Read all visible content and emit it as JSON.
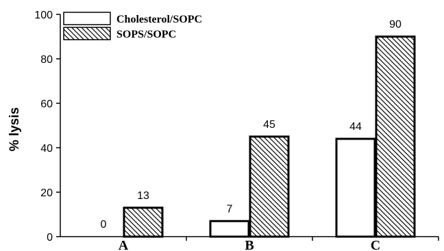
{
  "chart_data": {
    "type": "bar",
    "ylabel": "% lysis",
    "xlabel": "",
    "categories": [
      "A",
      "B",
      "C"
    ],
    "ylim": [
      0,
      100
    ],
    "yticks": [
      0,
      20,
      40,
      60,
      80,
      100
    ],
    "grid": false,
    "legend_position": "top-left",
    "series": [
      {
        "name": "Cholesterol/SOPC",
        "values": [
          0,
          7,
          44
        ],
        "fill": "#ffffff",
        "pattern": "none"
      },
      {
        "name": "SOPS/SOPC",
        "values": [
          13,
          45,
          90
        ],
        "fill": "#ffffff",
        "pattern": "diagonal-hatch"
      }
    ]
  }
}
